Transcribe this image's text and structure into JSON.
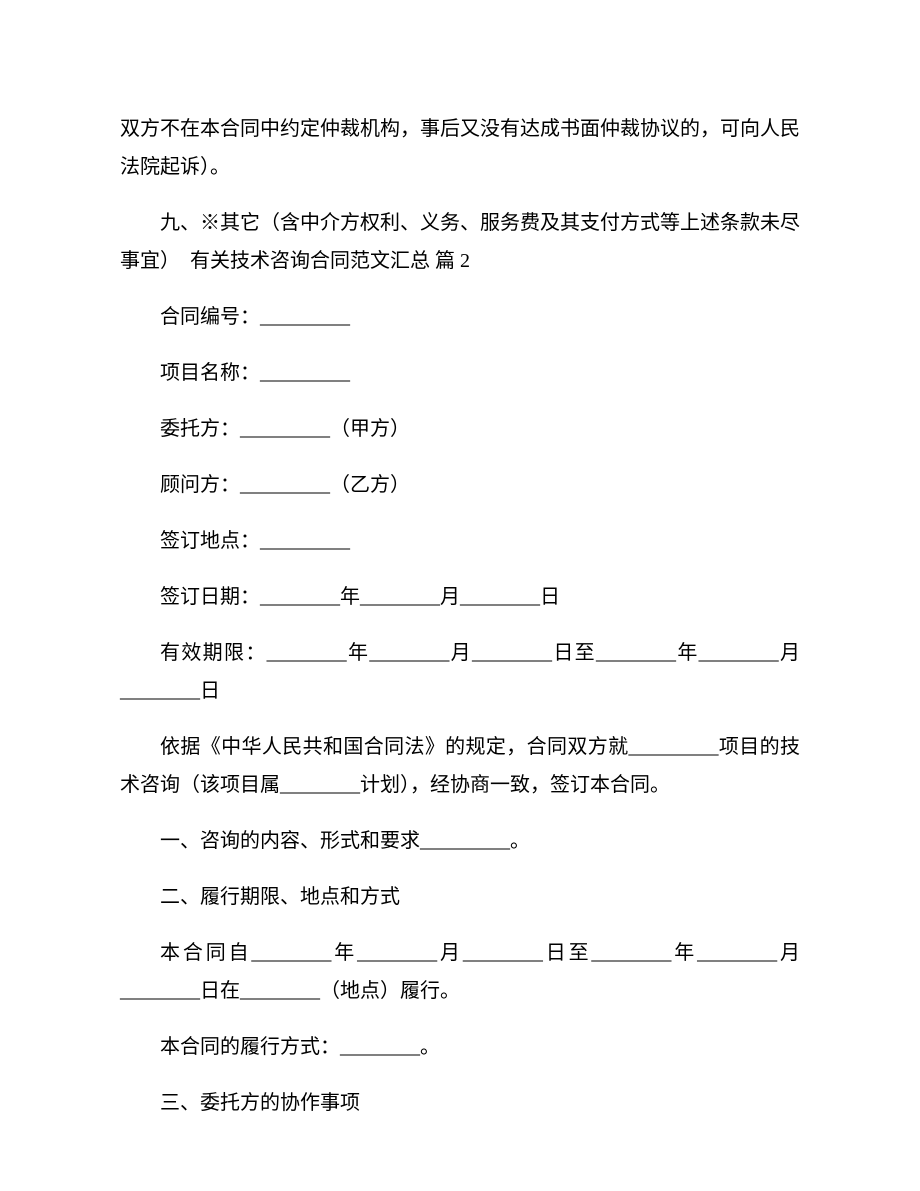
{
  "paragraphs": {
    "p1": "双方不在本合同中约定仲裁机构，事后又没有达成书面仲裁协议的，可向人民法院起诉）。",
    "p2": "九、※其它（含中介方权利、义务、服务费及其支付方式等上述条款未尽事宜）　有关技术咨询合同范文汇总 篇 2",
    "p3": "合同编号：_________",
    "p4": "项目名称：_________",
    "p5": "委托方：_________（甲方）",
    "p6": "顾问方：_________（乙方）",
    "p7": "签订地点：_________",
    "p8": "签订日期：________年________月________日",
    "p9": "有效期限：________年________月________日至________年________月________日",
    "p10": "依据《中华人民共和国合同法》的规定，合同双方就_________项目的技术咨询（该项目属________计划），经协商一致，签订本合同。",
    "p11": "一、咨询的内容、形式和要求_________。",
    "p12": "二、履行期限、地点和方式",
    "p13": "本合同自________年________月________日至________年________月________日在________（地点）履行。",
    "p14": "本合同的履行方式：________。",
    "p15": "三、委托方的协作事项"
  }
}
